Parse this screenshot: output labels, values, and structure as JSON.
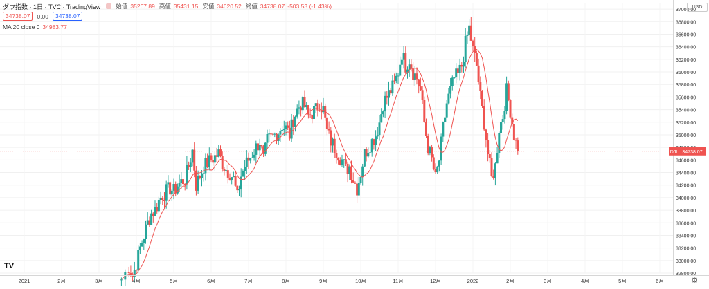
{
  "header": {
    "symbol": "ダウ指数 · 1日 · TVC · TradingView",
    "o_label": "始値",
    "o_val": "35267.89",
    "h_label": "高値",
    "h_val": "35431.15",
    "l_label": "安値",
    "l_val": "34620.52",
    "c_label": "終値",
    "c_val": "34738.07",
    "chg": "-503.53 (-1.43%)",
    "box_sell": "34738.07",
    "spread": "0.00",
    "box_buy": "34738.07",
    "ma_label": "MA 20 close 0",
    "ma_value": "34983.77",
    "currency": "USD",
    "logo": "TV"
  },
  "chart_data": {
    "type": "candlestick",
    "price_axis": {
      "labels": [
        "37000.00",
        "36800.00",
        "36600.00",
        "36400.00",
        "36200.00",
        "36000.00",
        "35800.00",
        "35600.00",
        "35400.00",
        "35200.00",
        "35000.00",
        "34800.00",
        "34600.00",
        "34400.00",
        "34200.00",
        "34000.00",
        "33800.00",
        "33600.00",
        "33400.00",
        "33200.00",
        "33000.00",
        "32800.00"
      ],
      "ylim": [
        32800,
        37100
      ],
      "last_price_tag": "DJI",
      "last_price": "34738.07"
    },
    "time_axis": {
      "labels": [
        "2021",
        "2月",
        "3月",
        "4月",
        "5月",
        "6月",
        "7月",
        "8月",
        "9月",
        "10月",
        "11月",
        "12月",
        "2022",
        "2月",
        "3月",
        "4月",
        "5月",
        "6月"
      ],
      "label_months": [
        0,
        1,
        2,
        3,
        4,
        5,
        6,
        7,
        8,
        9,
        10,
        11,
        12,
        13,
        14,
        15,
        16,
        17
      ],
      "xlim_months": [
        0,
        17.6
      ]
    },
    "series": [
      {
        "name": "ダウ指数",
        "kind": "candles",
        "up_color": "#26a69a",
        "down_color": "#ef5350",
        "closes": [
          [
            2.6,
            32700
          ],
          [
            2.8,
            32900
          ],
          [
            2.9,
            32750
          ],
          [
            3.0,
            32950
          ],
          [
            3.1,
            33200
          ],
          [
            3.2,
            33400
          ],
          [
            3.3,
            33600
          ],
          [
            3.4,
            33750
          ],
          [
            3.5,
            33800
          ],
          [
            3.6,
            33950
          ],
          [
            3.7,
            34050
          ],
          [
            3.8,
            34100
          ],
          [
            3.9,
            34150
          ],
          [
            4.0,
            34100
          ],
          [
            4.1,
            34200
          ],
          [
            4.2,
            34250
          ],
          [
            4.3,
            34300
          ],
          [
            4.4,
            34500
          ],
          [
            4.5,
            34750
          ],
          [
            4.6,
            34200
          ],
          [
            4.7,
            34350
          ],
          [
            4.8,
            34500
          ],
          [
            4.9,
            34550
          ],
          [
            5.0,
            34600
          ],
          [
            5.1,
            34650
          ],
          [
            5.2,
            34700
          ],
          [
            5.3,
            34550
          ],
          [
            5.4,
            34450
          ],
          [
            5.5,
            34400
          ],
          [
            5.6,
            34300
          ],
          [
            5.7,
            34000
          ],
          [
            5.8,
            34350
          ],
          [
            5.9,
            34500
          ],
          [
            6.0,
            34600
          ],
          [
            6.1,
            34700
          ],
          [
            6.2,
            34800
          ],
          [
            6.3,
            34900
          ],
          [
            6.4,
            34600
          ],
          [
            6.5,
            34900
          ],
          [
            6.6,
            34950
          ],
          [
            6.7,
            35000
          ],
          [
            6.8,
            35050
          ],
          [
            6.9,
            35150
          ],
          [
            7.0,
            35100
          ],
          [
            7.1,
            35000
          ],
          [
            7.2,
            35250
          ],
          [
            7.3,
            35400
          ],
          [
            7.4,
            35500
          ],
          [
            7.5,
            35450
          ],
          [
            7.6,
            35300
          ],
          [
            7.7,
            35350
          ],
          [
            7.8,
            35400
          ],
          [
            7.9,
            35500
          ],
          [
            8.0,
            35400
          ],
          [
            8.1,
            35050
          ],
          [
            8.2,
            34900
          ],
          [
            8.3,
            34800
          ],
          [
            8.4,
            34700
          ],
          [
            8.5,
            34600
          ],
          [
            8.6,
            34450
          ],
          [
            8.7,
            34500
          ],
          [
            8.8,
            34300
          ],
          [
            8.9,
            34150
          ],
          [
            9.0,
            34400
          ],
          [
            9.1,
            34700
          ],
          [
            9.2,
            34800
          ],
          [
            9.3,
            34900
          ],
          [
            9.4,
            35000
          ],
          [
            9.5,
            35200
          ],
          [
            9.6,
            35500
          ],
          [
            9.7,
            35600
          ],
          [
            9.8,
            35700
          ],
          [
            9.9,
            35800
          ],
          [
            10.0,
            36000
          ],
          [
            10.1,
            36300
          ],
          [
            10.2,
            36100
          ],
          [
            10.3,
            36200
          ],
          [
            10.4,
            36000
          ],
          [
            10.5,
            35900
          ],
          [
            10.6,
            35700
          ],
          [
            10.7,
            35200
          ],
          [
            10.8,
            34800
          ],
          [
            10.9,
            34600
          ],
          [
            11.0,
            34300
          ],
          [
            11.1,
            34600
          ],
          [
            11.2,
            35100
          ],
          [
            11.3,
            35500
          ],
          [
            11.4,
            35700
          ],
          [
            11.5,
            35900
          ],
          [
            11.6,
            35950
          ],
          [
            11.7,
            36100
          ],
          [
            11.8,
            36450
          ],
          [
            11.9,
            36700
          ],
          [
            12.0,
            36350
          ],
          [
            12.1,
            36100
          ],
          [
            12.2,
            35600
          ],
          [
            12.3,
            35200
          ],
          [
            12.4,
            34700
          ],
          [
            12.5,
            34300
          ],
          [
            12.6,
            34500
          ],
          [
            12.7,
            35100
          ],
          [
            12.8,
            35300
          ],
          [
            12.9,
            35700
          ],
          [
            13.0,
            35400
          ],
          [
            13.1,
            35000
          ],
          [
            13.2,
            34739
          ]
        ]
      },
      {
        "name": "MA 20 close 0",
        "kind": "line",
        "color": "#ef5350"
      }
    ],
    "grid": true
  }
}
